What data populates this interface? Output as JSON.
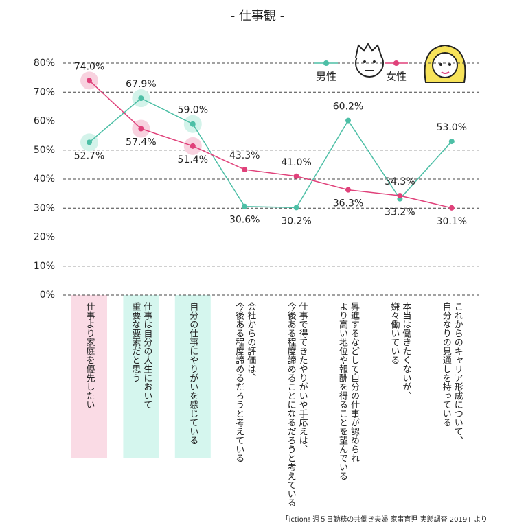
{
  "chart_data": {
    "type": "line",
    "title": "- 仕事観 -",
    "categories": [
      "仕事より家庭を優先したい",
      "仕事は自分の人生において\n重要な要素だと思う",
      "自分の仕事にやりがいを感じている",
      "会社からの評価は、\n今後ある程度諦めるだろうと考えている",
      "仕事で得てきたやりがいや手応えは、\n今後ある程度諦めることになるだろうと考えている",
      "昇進するなどして自分の仕事が認められ\nより高い地位や報酬を得ることを望んでいる",
      "本当は働きたくないが、\n嫌々働いている",
      "これからのキャリア形成について、\n自分なりの見通しを持っている"
    ],
    "category_highlight_colors": [
      "#fadbe5",
      "#d5f6ee",
      "#d5f6ee",
      null,
      null,
      null,
      null,
      null
    ],
    "series": [
      {
        "name": "男性",
        "color": "#4dbfa6",
        "halo_color": "#d3f3ea",
        "values": [
          52.7,
          67.9,
          59.0,
          30.6,
          30.2,
          60.2,
          33.2,
          53.0
        ],
        "value_labels": [
          "52.7%",
          "67.9%",
          "59.0%",
          "30.6%",
          "30.2%",
          "60.2%",
          "33.2%",
          "53.0%"
        ]
      },
      {
        "name": "女性",
        "color": "#e0417a",
        "halo_color": "#f8d2df",
        "values": [
          74.0,
          57.4,
          51.4,
          43.3,
          41.0,
          36.3,
          34.3,
          30.1
        ],
        "value_labels": [
          "74.0%",
          "57.4%",
          "51.4%",
          "43.3%",
          "41.0%",
          "36.3%",
          "34.3%",
          "30.1%"
        ]
      }
    ],
    "ylim": [
      0,
      80
    ],
    "yticks": [
      {
        "value": 0,
        "label": "0%"
      },
      {
        "value": 10,
        "label": "10%"
      },
      {
        "value": 20,
        "label": "20%"
      },
      {
        "value": 30,
        "label": "30%"
      },
      {
        "value": 40,
        "label": "40%"
      },
      {
        "value": 50,
        "label": "50%"
      },
      {
        "value": 60,
        "label": "60%"
      },
      {
        "value": 70,
        "label": "70%"
      },
      {
        "value": 80,
        "label": "80%"
      }
    ],
    "grid": true,
    "legend_position": "top-right",
    "source": "「iction! 週５日勤務の共働き夫婦 家事育児 実態調査 2019」より"
  }
}
